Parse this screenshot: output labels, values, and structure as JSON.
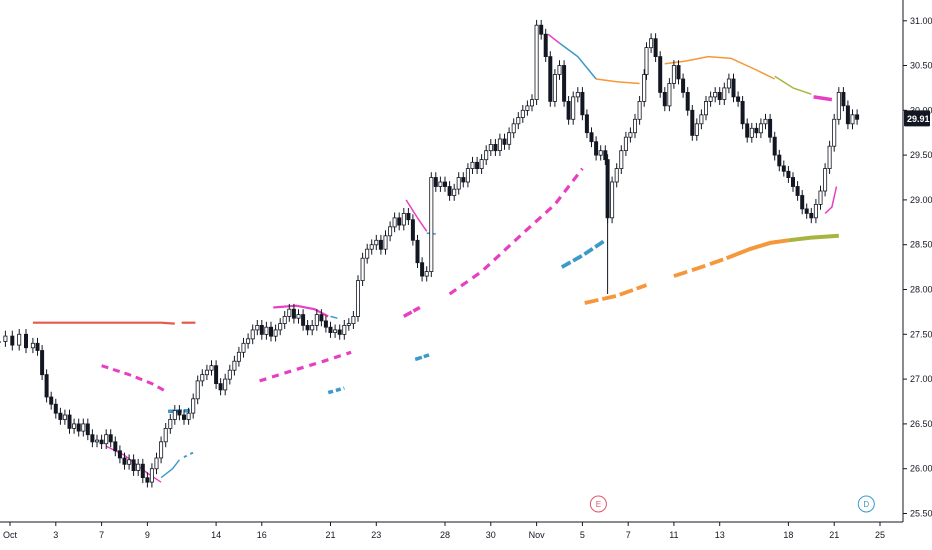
{
  "chart_data": {
    "type": "candlestick",
    "x_tick_labels": [
      "Oct",
      "3",
      "7",
      "9",
      "14",
      "16",
      "21",
      "23",
      "28",
      "30",
      "Nov",
      "5",
      "7",
      "11",
      "13",
      "18",
      "21",
      "25"
    ],
    "y_tick_labels": [
      "25.50",
      "26.00",
      "26.50",
      "27.00",
      "27.50",
      "28.00",
      "28.50",
      "29.00",
      "29.50",
      "30.00",
      "30.50",
      "31.00"
    ],
    "ylim": [
      25.45,
      31.12
    ],
    "last_price": "29.91",
    "last_price_value": 29.91,
    "grid": false,
    "colors": {
      "candles": "#131722",
      "axis": "#131722",
      "price_tag": "#131722",
      "magenta": "#e83ec2",
      "blue": "#3d9ac8",
      "orange": "#f5973a",
      "red": "#e35a4b",
      "olive": "#a9b43f",
      "event_e": "#e0566f",
      "event_d": "#3d9ac8"
    },
    "events": [
      {
        "label": "E",
        "x": 25.7,
        "color_key": "event_e"
      },
      {
        "label": "D",
        "x": 37.4,
        "color_key": "event_d"
      }
    ],
    "x_domain": [
      0,
      46
    ],
    "x_ticks": [
      0,
      2,
      4,
      6,
      9,
      11,
      14,
      16,
      19,
      21,
      23,
      25,
      27,
      29,
      31,
      34,
      36,
      38
    ],
    "price_path": [
      [
        -0.5,
        27.42
      ],
      [
        -0.2,
        27.48
      ],
      [
        0.1,
        27.38
      ],
      [
        0.4,
        27.5
      ],
      [
        0.7,
        27.35
      ],
      [
        1.0,
        27.4
      ],
      [
        1.2,
        27.32
      ],
      [
        1.4,
        27.05
      ],
      [
        1.6,
        26.8
      ],
      [
        1.8,
        26.72
      ],
      [
        2.0,
        26.62
      ],
      [
        2.2,
        26.55
      ],
      [
        2.4,
        26.6
      ],
      [
        2.6,
        26.45
      ],
      [
        2.8,
        26.5
      ],
      [
        3.0,
        26.42
      ],
      [
        3.2,
        26.5
      ],
      [
        3.4,
        26.38
      ],
      [
        3.6,
        26.3
      ],
      [
        3.8,
        26.32
      ],
      [
        4.0,
        26.28
      ],
      [
        4.2,
        26.38
      ],
      [
        4.4,
        26.3
      ],
      [
        4.6,
        26.2
      ],
      [
        4.8,
        26.12
      ],
      [
        5.0,
        26.05
      ],
      [
        5.2,
        26.1
      ],
      [
        5.4,
        25.98
      ],
      [
        5.6,
        26.05
      ],
      [
        5.8,
        25.9
      ],
      [
        6.0,
        25.85
      ],
      [
        6.2,
        26.0
      ],
      [
        6.4,
        26.12
      ],
      [
        6.6,
        26.3
      ],
      [
        6.8,
        26.45
      ],
      [
        7.0,
        26.55
      ],
      [
        7.2,
        26.65
      ],
      [
        7.4,
        26.6
      ],
      [
        7.6,
        26.55
      ],
      [
        7.8,
        26.62
      ],
      [
        8.0,
        26.78
      ],
      [
        8.2,
        26.98
      ],
      [
        8.4,
        27.05
      ],
      [
        8.6,
        27.1
      ],
      [
        8.8,
        27.15
      ],
      [
        9.0,
        26.95
      ],
      [
        9.2,
        26.88
      ],
      [
        9.4,
        27.0
      ],
      [
        9.6,
        27.1
      ],
      [
        9.8,
        27.2
      ],
      [
        10.0,
        27.3
      ],
      [
        10.2,
        27.4
      ],
      [
        10.4,
        27.45
      ],
      [
        10.6,
        27.55
      ],
      [
        10.8,
        27.6
      ],
      [
        11.0,
        27.5
      ],
      [
        11.2,
        27.58
      ],
      [
        11.4,
        27.48
      ],
      [
        11.6,
        27.55
      ],
      [
        11.8,
        27.62
      ],
      [
        12.0,
        27.7
      ],
      [
        12.2,
        27.78
      ],
      [
        12.4,
        27.68
      ],
      [
        12.6,
        27.72
      ],
      [
        12.8,
        27.6
      ],
      [
        13.0,
        27.55
      ],
      [
        13.2,
        27.6
      ],
      [
        13.4,
        27.72
      ],
      [
        13.6,
        27.65
      ],
      [
        13.8,
        27.58
      ],
      [
        14.0,
        27.52
      ],
      [
        14.2,
        27.55
      ],
      [
        14.4,
        27.5
      ],
      [
        14.6,
        27.6
      ],
      [
        14.8,
        27.62
      ],
      [
        15.0,
        27.7
      ],
      [
        15.2,
        28.1
      ],
      [
        15.4,
        28.35
      ],
      [
        15.6,
        28.45
      ],
      [
        15.8,
        28.5
      ],
      [
        16.0,
        28.55
      ],
      [
        16.2,
        28.45
      ],
      [
        16.4,
        28.6
      ],
      [
        16.6,
        28.7
      ],
      [
        16.8,
        28.8
      ],
      [
        17.0,
        28.72
      ],
      [
        17.2,
        28.85
      ],
      [
        17.4,
        28.78
      ],
      [
        17.6,
        28.55
      ],
      [
        17.8,
        28.3
      ],
      [
        18.0,
        28.15
      ],
      [
        18.2,
        28.2
      ],
      [
        18.4,
        29.25
      ],
      [
        18.6,
        29.15
      ],
      [
        18.8,
        29.2
      ],
      [
        19.0,
        29.15
      ],
      [
        19.2,
        29.05
      ],
      [
        19.4,
        29.12
      ],
      [
        19.6,
        29.25
      ],
      [
        19.8,
        29.2
      ],
      [
        20.0,
        29.35
      ],
      [
        20.2,
        29.42
      ],
      [
        20.4,
        29.35
      ],
      [
        20.6,
        29.45
      ],
      [
        20.8,
        29.55
      ],
      [
        21.0,
        29.62
      ],
      [
        21.2,
        29.55
      ],
      [
        21.4,
        29.68
      ],
      [
        21.6,
        29.62
      ],
      [
        21.8,
        29.75
      ],
      [
        22.0,
        29.85
      ],
      [
        22.2,
        29.92
      ],
      [
        22.4,
        30.0
      ],
      [
        22.6,
        30.05
      ],
      [
        22.8,
        30.12
      ],
      [
        23.0,
        30.95
      ],
      [
        23.2,
        30.85
      ],
      [
        23.4,
        30.6
      ],
      [
        23.6,
        30.1
      ],
      [
        23.8,
        30.4
      ],
      [
        24.0,
        30.5
      ],
      [
        24.2,
        30.1
      ],
      [
        24.4,
        29.9
      ],
      [
        24.6,
        30.15
      ],
      [
        24.8,
        30.2
      ],
      [
        25.0,
        29.95
      ],
      [
        25.2,
        29.75
      ],
      [
        25.4,
        29.65
      ],
      [
        25.6,
        29.5
      ],
      [
        25.8,
        29.55
      ],
      [
        26.0,
        29.45
      ],
      [
        26.1,
        28.8
      ],
      [
        26.3,
        29.2
      ],
      [
        26.5,
        29.35
      ],
      [
        26.7,
        29.55
      ],
      [
        26.9,
        29.7
      ],
      [
        27.1,
        29.75
      ],
      [
        27.3,
        29.9
      ],
      [
        27.5,
        30.1
      ],
      [
        27.7,
        30.4
      ],
      [
        27.8,
        30.7
      ],
      [
        28.0,
        30.8
      ],
      [
        28.2,
        30.6
      ],
      [
        28.4,
        30.2
      ],
      [
        28.6,
        30.05
      ],
      [
        28.8,
        30.3
      ],
      [
        29.0,
        30.5
      ],
      [
        29.2,
        30.35
      ],
      [
        29.4,
        30.2
      ],
      [
        29.6,
        30.0
      ],
      [
        29.8,
        29.72
      ],
      [
        30.0,
        29.85
      ],
      [
        30.2,
        29.95
      ],
      [
        30.4,
        30.1
      ],
      [
        30.6,
        30.15
      ],
      [
        30.8,
        30.2
      ],
      [
        31.0,
        30.12
      ],
      [
        31.2,
        30.25
      ],
      [
        31.4,
        30.35
      ],
      [
        31.6,
        30.15
      ],
      [
        31.8,
        30.1
      ],
      [
        32.0,
        29.85
      ],
      [
        32.2,
        29.7
      ],
      [
        32.4,
        29.8
      ],
      [
        32.6,
        29.75
      ],
      [
        32.8,
        29.85
      ],
      [
        33.0,
        29.9
      ],
      [
        33.2,
        29.7
      ],
      [
        33.4,
        29.5
      ],
      [
        33.6,
        29.38
      ],
      [
        33.8,
        29.32
      ],
      [
        34.0,
        29.25
      ],
      [
        34.2,
        29.15
      ],
      [
        34.4,
        29.05
      ],
      [
        34.6,
        28.9
      ],
      [
        34.8,
        28.85
      ],
      [
        35.0,
        28.8
      ],
      [
        35.2,
        28.95
      ],
      [
        35.4,
        29.1
      ],
      [
        35.6,
        29.35
      ],
      [
        35.8,
        29.6
      ],
      [
        36.0,
        29.9
      ],
      [
        36.2,
        30.2
      ],
      [
        36.4,
        30.05
      ],
      [
        36.6,
        29.85
      ],
      [
        36.8,
        29.95
      ],
      [
        37.0,
        29.9
      ]
    ],
    "series": [
      {
        "color_key": "red",
        "width": 2.2,
        "points": [
          [
            1.0,
            27.63
          ],
          [
            6.6,
            27.63
          ],
          [
            7.2,
            27.62
          ]
        ]
      },
      {
        "color_key": "red",
        "width": 2.2,
        "points": [
          [
            7.5,
            27.63
          ],
          [
            8.1,
            27.63
          ]
        ]
      },
      {
        "color_key": "magenta",
        "width": 3,
        "dash": "7,5",
        "points": [
          [
            4.0,
            27.15
          ],
          [
            5.2,
            27.05
          ],
          [
            6.2,
            26.95
          ],
          [
            6.9,
            26.85
          ]
        ]
      },
      {
        "color_key": "magenta",
        "width": 1.4,
        "points": [
          [
            4.2,
            26.25
          ],
          [
            5.0,
            26.15
          ],
          [
            6.0,
            25.95
          ],
          [
            6.6,
            25.85
          ]
        ]
      },
      {
        "color_key": "blue",
        "width": 1.4,
        "points": [
          [
            6.6,
            25.9
          ],
          [
            7.1,
            26.0
          ],
          [
            7.4,
            26.1
          ]
        ]
      },
      {
        "color_key": "blue",
        "width": 2,
        "dash": "3,4",
        "points": [
          [
            7.6,
            26.13
          ],
          [
            8.0,
            26.18
          ]
        ]
      },
      {
        "color_key": "blue",
        "width": 3.5,
        "dash": "6,2",
        "points": [
          [
            6.9,
            26.64
          ],
          [
            8.0,
            26.65
          ]
        ]
      },
      {
        "color_key": "magenta",
        "width": 2.2,
        "points": [
          [
            11.5,
            27.8
          ],
          [
            12.5,
            27.82
          ],
          [
            13.3,
            27.78
          ],
          [
            13.9,
            27.7
          ]
        ]
      },
      {
        "color_key": "blue",
        "width": 1.5,
        "points": [
          [
            14.0,
            27.7
          ],
          [
            14.3,
            27.68
          ]
        ]
      },
      {
        "color_key": "magenta",
        "width": 3.2,
        "dash": "7,6",
        "points": [
          [
            10.9,
            26.98
          ],
          [
            12.4,
            27.1
          ],
          [
            13.7,
            27.2
          ],
          [
            14.9,
            27.3
          ]
        ]
      },
      {
        "color_key": "blue",
        "width": 3.5,
        "dash": "5,3",
        "points": [
          [
            13.9,
            26.85
          ],
          [
            14.6,
            26.9
          ]
        ]
      },
      {
        "color_key": "magenta",
        "width": 1.5,
        "points": [
          [
            17.3,
            29.0
          ],
          [
            17.8,
            28.8
          ],
          [
            18.2,
            28.65
          ]
        ]
      },
      {
        "color_key": "blue",
        "width": 1.5,
        "points": [
          [
            18.2,
            28.63
          ],
          [
            18.6,
            28.62
          ]
        ]
      },
      {
        "color_key": "magenta",
        "width": 3.5,
        "dash": "9,2",
        "points": [
          [
            17.2,
            27.7
          ],
          [
            17.9,
            27.8
          ]
        ]
      },
      {
        "color_key": "blue",
        "width": 3.5,
        "dash": "7,2",
        "points": [
          [
            17.7,
            27.22
          ],
          [
            18.3,
            27.27
          ]
        ]
      },
      {
        "color_key": "magenta",
        "width": 3.2,
        "dash": "8,6",
        "points": [
          [
            19.2,
            27.95
          ],
          [
            20.6,
            28.2
          ],
          [
            22.5,
            28.65
          ],
          [
            23.8,
            28.95
          ],
          [
            25.0,
            29.35
          ]
        ]
      },
      {
        "color_key": "blue",
        "width": 3.8,
        "dash": "10,3",
        "points": [
          [
            24.1,
            28.25
          ],
          [
            25.0,
            28.38
          ],
          [
            26.0,
            28.55
          ]
        ]
      },
      {
        "color_key": "orange",
        "width": 3.8,
        "dash": "14,4",
        "points": [
          [
            25.1,
            27.85
          ],
          [
            26.5,
            27.93
          ],
          [
            27.8,
            28.05
          ]
        ]
      },
      {
        "color_key": "orange",
        "width": 3.8,
        "dash": "14,5",
        "points": [
          [
            29.0,
            28.15
          ],
          [
            30.2,
            28.25
          ],
          [
            31.3,
            28.35
          ]
        ]
      },
      {
        "color_key": "orange",
        "width": 4,
        "points": [
          [
            31.3,
            28.35
          ],
          [
            32.3,
            28.45
          ],
          [
            33.2,
            28.52
          ],
          [
            34.0,
            28.55
          ]
        ]
      },
      {
        "color_key": "olive",
        "width": 4,
        "points": [
          [
            34.0,
            28.55
          ],
          [
            35.0,
            28.58
          ],
          [
            36.2,
            28.6
          ]
        ]
      },
      {
        "color_key": "magenta",
        "width": 1.5,
        "points": [
          [
            35.6,
            28.85
          ],
          [
            35.9,
            28.92
          ],
          [
            36.1,
            29.15
          ]
        ]
      },
      {
        "color_key": "magenta",
        "width": 1.5,
        "points": [
          [
            23.5,
            30.85
          ],
          [
            24.0,
            30.75
          ]
        ]
      },
      {
        "color_key": "blue",
        "width": 1.5,
        "points": [
          [
            24.0,
            30.75
          ],
          [
            24.8,
            30.6
          ],
          [
            25.6,
            30.35
          ]
        ]
      },
      {
        "color_key": "orange",
        "width": 1.5,
        "points": [
          [
            25.6,
            30.35
          ],
          [
            26.5,
            30.32
          ],
          [
            27.5,
            30.3
          ]
        ]
      },
      {
        "color_key": "orange",
        "width": 1.5,
        "points": [
          [
            28.6,
            30.52
          ],
          [
            29.5,
            30.55
          ],
          [
            30.5,
            30.6
          ],
          [
            31.5,
            30.58
          ],
          [
            32.6,
            30.45
          ],
          [
            33.4,
            30.35
          ]
        ]
      },
      {
        "color_key": "olive",
        "width": 1.5,
        "points": [
          [
            33.4,
            30.38
          ],
          [
            34.2,
            30.25
          ],
          [
            35.0,
            30.18
          ]
        ]
      },
      {
        "color_key": "magenta",
        "width": 3.5,
        "points": [
          [
            35.1,
            30.15
          ],
          [
            35.9,
            30.12
          ]
        ]
      }
    ],
    "spike": {
      "x": 26.1,
      "low": 27.95,
      "high": 29.0
    }
  }
}
